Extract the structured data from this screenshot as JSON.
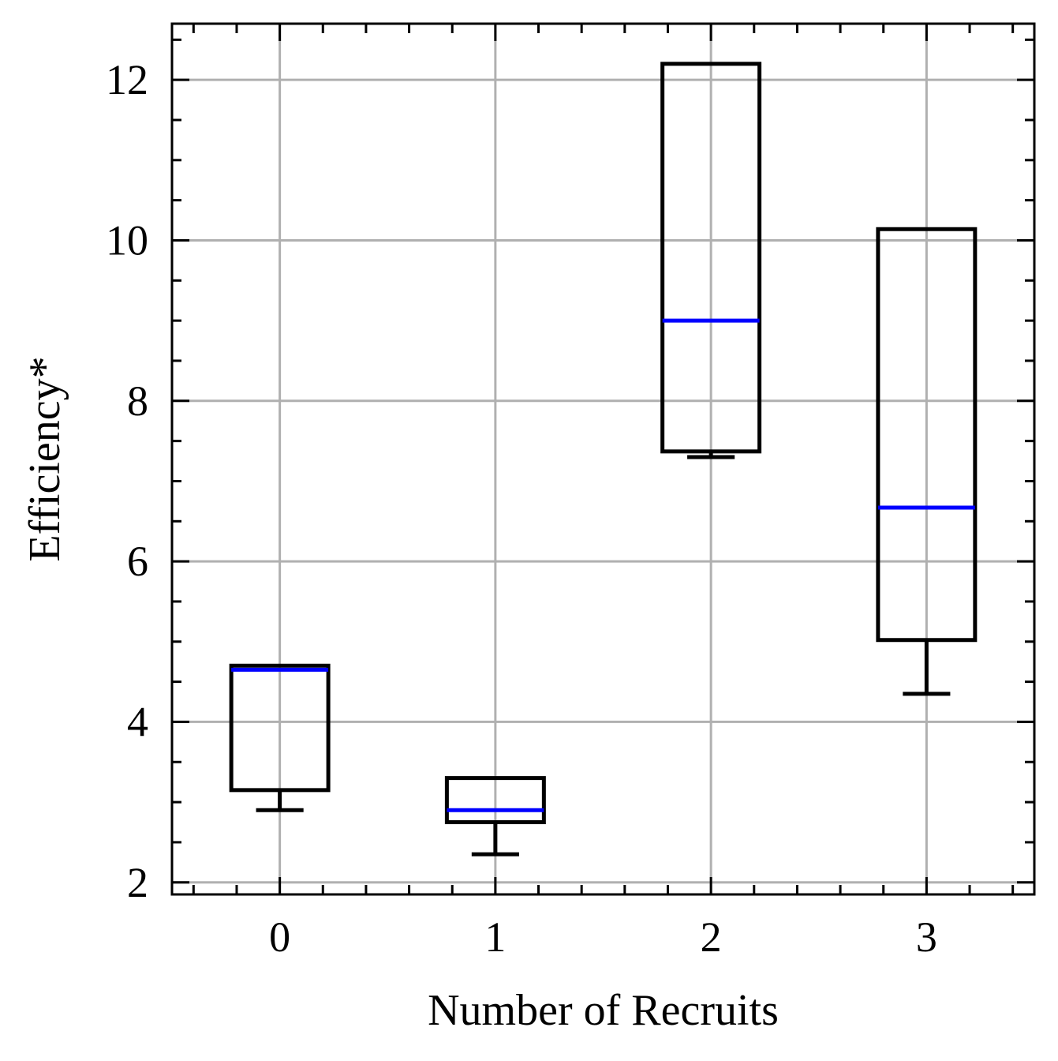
{
  "chart_data": {
    "type": "box",
    "xlabel": "Number of Recruits",
    "ylabel": "Efficiency*",
    "categories": [
      "0",
      "1",
      "2",
      "3"
    ],
    "boxes": [
      {
        "category": "0",
        "whisker_low": 2.9,
        "q1": 3.15,
        "median": 4.65,
        "q3": 4.7,
        "whisker_high": 4.7
      },
      {
        "category": "1",
        "whisker_low": 2.35,
        "q1": 2.75,
        "median": 2.9,
        "q3": 3.3,
        "whisker_high": 3.3
      },
      {
        "category": "2",
        "whisker_low": 7.3,
        "q1": 7.37,
        "median": 9.0,
        "q3": 12.2,
        "whisker_high": 12.2
      },
      {
        "category": "3",
        "whisker_low": 4.35,
        "q1": 5.02,
        "median": 6.67,
        "q3": 10.14,
        "whisker_high": 10.14
      }
    ],
    "ylim": [
      1.85,
      12.7
    ],
    "xlim": [
      -0.5,
      3.5
    ],
    "yticks": [
      2,
      4,
      6,
      8,
      10,
      12
    ],
    "yticks_minor_step": 0.5,
    "xticks_minor_step": 0.2,
    "grid": true,
    "colors": {
      "box": "#000000",
      "median": "#0000ff",
      "grid": "#b0b0b0"
    }
  }
}
